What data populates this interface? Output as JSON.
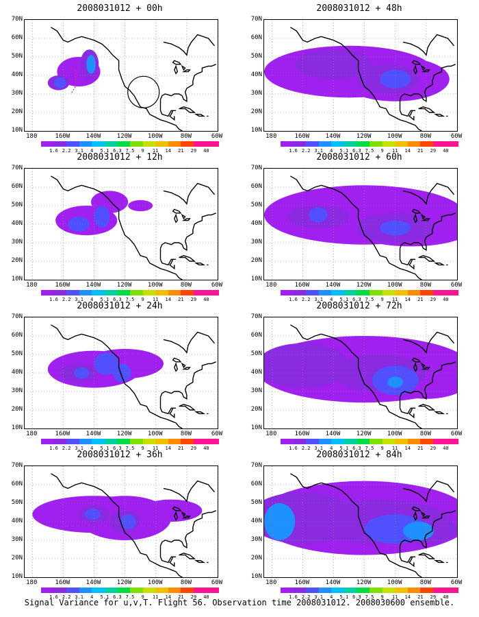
{
  "figure": {
    "caption": "Signal Variance for u,v,T. Flight 56. Observation time 2008031012. 2008030600 ensemble."
  },
  "axes": {
    "lat_labels": [
      "70N",
      "60N",
      "50N",
      "40N",
      "30N",
      "20N",
      "10N"
    ],
    "lon_labels": [
      "180",
      "160W",
      "140W",
      "120W",
      "100W",
      "80W",
      "60W"
    ]
  },
  "colorbar": {
    "levels": [
      "1.6",
      "2.2",
      "3.1",
      "4",
      "5.1",
      "6.3",
      "7.5",
      "9",
      "11",
      "14",
      "21",
      "29",
      "40"
    ],
    "colors": [
      "#a020f0",
      "#8a2be2",
      "#5050ff",
      "#1e90ff",
      "#00bfff",
      "#00d0a0",
      "#00dd44",
      "#7fe000",
      "#c8e000",
      "#f0c000",
      "#ff8c00",
      "#ff4500",
      "#ff1493"
    ]
  },
  "panels": [
    {
      "title": "2008031012 + 00h",
      "col": 0,
      "row": 0
    },
    {
      "title": "2008031012 + 12h",
      "col": 0,
      "row": 1
    },
    {
      "title": "2008031012 + 24h",
      "col": 0,
      "row": 2
    },
    {
      "title": "2008031012 + 36h",
      "col": 0,
      "row": 3
    },
    {
      "title": "2008031012 + 48h",
      "col": 1,
      "row": 0
    },
    {
      "title": "2008031012 + 60h",
      "col": 1,
      "row": 1
    },
    {
      "title": "2008031012 + 72h",
      "col": 1,
      "row": 2
    },
    {
      "title": "2008031012 + 84h",
      "col": 1,
      "row": 3
    }
  ]
}
